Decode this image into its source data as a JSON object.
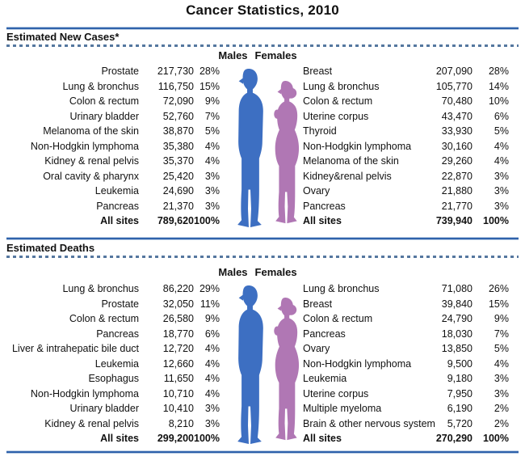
{
  "title": "Cancer Statistics, 2010",
  "gender_labels": {
    "males": "Males",
    "females": "Females"
  },
  "colors": {
    "male_figure": "#3d6fc2",
    "female_figure": "#b077b4",
    "rule_blue": "#2f62ab",
    "dash_blue": "#55779f"
  },
  "chart_data": {
    "type": "table",
    "title": "Cancer Statistics, 2010",
    "sections": [
      {
        "heading": "Estimated New Cases*",
        "males": {
          "rows": [
            {
              "site": "Prostate",
              "count": "217,730",
              "pct": "28%"
            },
            {
              "site": "Lung & bronchus",
              "count": "116,750",
              "pct": "15%"
            },
            {
              "site": "Colon & rectum",
              "count": "72,090",
              "pct": "9%"
            },
            {
              "site": "Urinary bladder",
              "count": "52,760",
              "pct": "7%"
            },
            {
              "site": "Melanoma of the skin",
              "count": "38,870",
              "pct": "5%"
            },
            {
              "site": "Non-Hodgkin lymphoma",
              "count": "35,380",
              "pct": "4%"
            },
            {
              "site": "Kidney & renal pelvis",
              "count": "35,370",
              "pct": "4%"
            },
            {
              "site": "Oral cavity & pharynx",
              "count": "25,420",
              "pct": "3%"
            },
            {
              "site": "Leukemia",
              "count": "24,690",
              "pct": "3%"
            },
            {
              "site": "Pancreas",
              "count": "21,370",
              "pct": "3%"
            }
          ],
          "total": {
            "site": "All sites",
            "count": "789,620",
            "pct": "100%"
          }
        },
        "females": {
          "rows": [
            {
              "site": "Breast",
              "count": "207,090",
              "pct": "28%"
            },
            {
              "site": "Lung & bronchus",
              "count": "105,770",
              "pct": "14%"
            },
            {
              "site": "Colon & rectum",
              "count": "70,480",
              "pct": "10%"
            },
            {
              "site": "Uterine corpus",
              "count": "43,470",
              "pct": "6%"
            },
            {
              "site": "Thyroid",
              "count": "33,930",
              "pct": "5%"
            },
            {
              "site": "Non-Hodgkin lymphoma",
              "count": "30,160",
              "pct": "4%"
            },
            {
              "site": "Melanoma of the skin",
              "count": "29,260",
              "pct": "4%"
            },
            {
              "site": "Kidney&renal pelvis",
              "count": "22,870",
              "pct": "3%"
            },
            {
              "site": "Ovary",
              "count": "21,880",
              "pct": "3%"
            },
            {
              "site": "Pancreas",
              "count": "21,770",
              "pct": "3%"
            }
          ],
          "total": {
            "site": "All sites",
            "count": "739,940",
            "pct": "100%"
          }
        }
      },
      {
        "heading": "Estimated Deaths",
        "males": {
          "rows": [
            {
              "site": "Lung & bronchus",
              "count": "86,220",
              "pct": "29%"
            },
            {
              "site": "Prostate",
              "count": "32,050",
              "pct": "11%"
            },
            {
              "site": "Colon & rectum",
              "count": "26,580",
              "pct": "9%"
            },
            {
              "site": "Pancreas",
              "count": "18,770",
              "pct": "6%"
            },
            {
              "site": "Liver & intrahepatic bile duct",
              "count": "12,720",
              "pct": "4%"
            },
            {
              "site": "Leukemia",
              "count": "12,660",
              "pct": "4%"
            },
            {
              "site": "Esophagus",
              "count": "11,650",
              "pct": "4%"
            },
            {
              "site": "Non-Hodgkin lymphoma",
              "count": "10,710",
              "pct": "4%"
            },
            {
              "site": "Urinary bladder",
              "count": "10,410",
              "pct": "3%"
            },
            {
              "site": "Kidney & renal pelvis",
              "count": "8,210",
              "pct": "3%"
            }
          ],
          "total": {
            "site": "All sites",
            "count": "299,200",
            "pct": "100%"
          }
        },
        "females": {
          "rows": [
            {
              "site": "Lung & bronchus",
              "count": "71,080",
              "pct": "26%"
            },
            {
              "site": "Breast",
              "count": "39,840",
              "pct": "15%"
            },
            {
              "site": "Colon & rectum",
              "count": "24,790",
              "pct": "9%"
            },
            {
              "site": "Pancreas",
              "count": "18,030",
              "pct": "7%"
            },
            {
              "site": "Ovary",
              "count": "13,850",
              "pct": "5%"
            },
            {
              "site": "Non-Hodgkin lymphoma",
              "count": "9,500",
              "pct": "4%"
            },
            {
              "site": "Leukemia",
              "count": "9,180",
              "pct": "3%"
            },
            {
              "site": "Uterine corpus",
              "count": "7,950",
              "pct": "3%"
            },
            {
              "site": "Multiple myeloma",
              "count": "6,190",
              "pct": "2%"
            },
            {
              "site": "Brain & other nervous system",
              "count": "5,720",
              "pct": "2%"
            }
          ],
          "total": {
            "site": "All sites",
            "count": "270,290",
            "pct": "100%"
          }
        }
      }
    ]
  }
}
